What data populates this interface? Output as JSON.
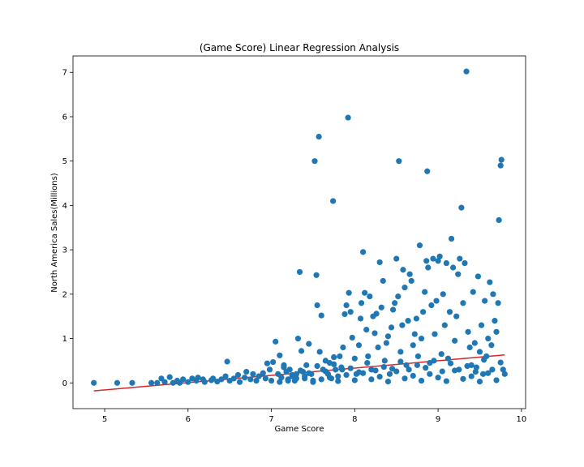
{
  "chart_data": {
    "type": "scatter",
    "title": "(Game Score) Linear Regression Analysis",
    "xlabel": "Game Score",
    "ylabel": "North America Sales(Millions)",
    "xlim": [
      4.62,
      10.05
    ],
    "ylim": [
      -0.58,
      7.37
    ],
    "xticks": [
      5,
      6,
      7,
      8,
      9,
      10
    ],
    "yticks": [
      0,
      1,
      2,
      3,
      4,
      5,
      6,
      7
    ],
    "grid": false,
    "legend": "none",
    "colors": {
      "points": "#1f77b4",
      "regression_line": "#d62728"
    },
    "regression_line": {
      "x": [
        4.87,
        9.8
      ],
      "y": [
        -0.18,
        0.63
      ]
    },
    "series": [
      {
        "points": [
          [
            4.87,
            0.0
          ],
          [
            5.15,
            0.0
          ],
          [
            5.33,
            0.0
          ],
          [
            5.56,
            0.0
          ],
          [
            5.63,
            0.0
          ],
          [
            5.68,
            0.1
          ],
          [
            5.72,
            0.02
          ],
          [
            5.78,
            0.13
          ],
          [
            5.82,
            0.0
          ],
          [
            5.87,
            0.05
          ],
          [
            5.9,
            0.0
          ],
          [
            5.94,
            0.08
          ],
          [
            6.0,
            0.02
          ],
          [
            6.05,
            0.1
          ],
          [
            6.1,
            0.05
          ],
          [
            6.12,
            0.12
          ],
          [
            6.18,
            0.08
          ],
          [
            6.2,
            0.02
          ],
          [
            6.28,
            0.06
          ],
          [
            6.3,
            0.1
          ],
          [
            6.35,
            0.03
          ],
          [
            6.4,
            0.08
          ],
          [
            6.45,
            0.15
          ],
          [
            6.47,
            0.48
          ],
          [
            6.5,
            0.05
          ],
          [
            6.55,
            0.1
          ],
          [
            6.6,
            0.18
          ],
          [
            6.62,
            0.02
          ],
          [
            6.68,
            0.12
          ],
          [
            6.7,
            0.25
          ],
          [
            6.75,
            0.08
          ],
          [
            6.78,
            0.2
          ],
          [
            6.82,
            0.05
          ],
          [
            6.85,
            0.15
          ],
          [
            6.9,
            0.22
          ],
          [
            6.93,
            0.1
          ],
          [
            6.95,
            0.44
          ],
          [
            6.98,
            0.3
          ],
          [
            7.0,
            0.05
          ],
          [
            7.02,
            0.47
          ],
          [
            7.05,
            0.93
          ],
          [
            7.08,
            0.2
          ],
          [
            7.1,
            0.62
          ],
          [
            7.12,
            0.12
          ],
          [
            7.15,
            0.4
          ],
          [
            7.18,
            0.25
          ],
          [
            7.2,
            0.08
          ],
          [
            7.22,
            0.3
          ],
          [
            7.25,
            0.15
          ],
          [
            7.28,
            0.05
          ],
          [
            7.3,
            0.2
          ],
          [
            7.32,
            1.0
          ],
          [
            7.34,
            2.5
          ],
          [
            7.36,
            0.72
          ],
          [
            7.38,
            0.25
          ],
          [
            7.4,
            0.1
          ],
          [
            7.42,
            0.4
          ],
          [
            7.45,
            0.88
          ],
          [
            7.48,
            0.2
          ],
          [
            7.5,
            0.05
          ],
          [
            7.52,
            5.0
          ],
          [
            7.54,
            2.43
          ],
          [
            7.55,
            1.75
          ],
          [
            7.57,
            5.55
          ],
          [
            7.58,
            0.7
          ],
          [
            7.6,
            1.52
          ],
          [
            7.62,
            0.3
          ],
          [
            7.65,
            0.5
          ],
          [
            7.68,
            0.2
          ],
          [
            7.7,
            0.45
          ],
          [
            7.72,
            0.1
          ],
          [
            7.74,
            4.1
          ],
          [
            7.75,
            0.58
          ],
          [
            7.77,
            0.3
          ],
          [
            7.8,
            0.15
          ],
          [
            7.82,
            0.6
          ],
          [
            7.84,
            0.35
          ],
          [
            7.86,
            0.8
          ],
          [
            7.88,
            1.55
          ],
          [
            7.9,
            1.75
          ],
          [
            7.92,
            5.98
          ],
          [
            7.93,
            2.03
          ],
          [
            7.95,
            1.6
          ],
          [
            7.97,
            1.02
          ],
          [
            8.0,
            0.55
          ],
          [
            8.02,
            0.2
          ],
          [
            8.05,
            0.85
          ],
          [
            8.07,
            1.45
          ],
          [
            8.08,
            1.8
          ],
          [
            8.1,
            2.95
          ],
          [
            8.12,
            2.03
          ],
          [
            8.14,
            1.2
          ],
          [
            8.16,
            0.6
          ],
          [
            8.18,
            1.95
          ],
          [
            8.2,
            0.3
          ],
          [
            8.22,
            1.5
          ],
          [
            8.24,
            1.12
          ],
          [
            8.26,
            1.56
          ],
          [
            8.28,
            0.8
          ],
          [
            8.3,
            2.72
          ],
          [
            8.32,
            1.7
          ],
          [
            8.34,
            2.3
          ],
          [
            8.36,
            0.5
          ],
          [
            8.38,
            0.9
          ],
          [
            8.4,
            1.05
          ],
          [
            8.42,
            0.2
          ],
          [
            8.44,
            1.25
          ],
          [
            8.46,
            1.65
          ],
          [
            8.48,
            1.8
          ],
          [
            8.5,
            2.8
          ],
          [
            8.52,
            1.95
          ],
          [
            8.53,
            5.0
          ],
          [
            8.55,
            0.7
          ],
          [
            8.57,
            1.3
          ],
          [
            8.58,
            2.55
          ],
          [
            8.6,
            2.15
          ],
          [
            8.62,
            0.4
          ],
          [
            8.64,
            1.4
          ],
          [
            8.66,
            2.45
          ],
          [
            8.68,
            2.3
          ],
          [
            8.7,
            0.85
          ],
          [
            8.72,
            1.1
          ],
          [
            8.74,
            1.45
          ],
          [
            8.76,
            0.6
          ],
          [
            8.78,
            3.1
          ],
          [
            8.8,
            1.0
          ],
          [
            8.82,
            1.6
          ],
          [
            8.84,
            2.05
          ],
          [
            8.86,
            2.75
          ],
          [
            8.87,
            4.77
          ],
          [
            8.88,
            2.6
          ],
          [
            8.9,
            0.45
          ],
          [
            8.92,
            1.75
          ],
          [
            8.94,
            2.8
          ],
          [
            8.96,
            1.1
          ],
          [
            8.98,
            1.85
          ],
          [
            9.0,
            2.75
          ],
          [
            9.02,
            2.85
          ],
          [
            9.04,
            0.65
          ],
          [
            9.06,
            2.0
          ],
          [
            9.08,
            1.3
          ],
          [
            9.1,
            2.7
          ],
          [
            9.12,
            0.55
          ],
          [
            9.14,
            1.6
          ],
          [
            9.16,
            3.25
          ],
          [
            9.18,
            2.6
          ],
          [
            9.2,
            0.95
          ],
          [
            9.22,
            1.5
          ],
          [
            9.24,
            2.45
          ],
          [
            9.26,
            2.8
          ],
          [
            9.28,
            3.95
          ],
          [
            9.3,
            1.8
          ],
          [
            9.32,
            2.7
          ],
          [
            9.34,
            7.02
          ],
          [
            9.36,
            1.15
          ],
          [
            9.38,
            0.8
          ],
          [
            9.4,
            0.4
          ],
          [
            9.42,
            2.05
          ],
          [
            9.44,
            0.9
          ],
          [
            9.46,
            0.35
          ],
          [
            9.48,
            2.4
          ],
          [
            9.5,
            0.7
          ],
          [
            9.52,
            1.3
          ],
          [
            9.54,
            0.2
          ],
          [
            9.56,
            1.85
          ],
          [
            9.58,
            0.6
          ],
          [
            9.6,
            1.0
          ],
          [
            9.62,
            2.27
          ],
          [
            9.64,
            0.85
          ],
          [
            9.66,
            2.0
          ],
          [
            9.68,
            1.4
          ],
          [
            9.7,
            1.15
          ],
          [
            9.72,
            1.8
          ],
          [
            9.73,
            3.67
          ],
          [
            9.75,
            4.9
          ],
          [
            9.76,
            5.03
          ],
          [
            9.78,
            0.3
          ],
          [
            9.8,
            0.2
          ],
          [
            7.1,
            0.02
          ],
          [
            7.2,
            0.05
          ],
          [
            7.3,
            0.1
          ],
          [
            7.4,
            0.15
          ],
          [
            7.5,
            0.02
          ],
          [
            7.6,
            0.08
          ],
          [
            7.7,
            0.12
          ],
          [
            7.8,
            0.04
          ],
          [
            7.9,
            0.18
          ],
          [
            8.0,
            0.06
          ],
          [
            8.1,
            0.22
          ],
          [
            8.2,
            0.08
          ],
          [
            8.3,
            0.14
          ],
          [
            8.4,
            0.03
          ],
          [
            8.5,
            0.26
          ],
          [
            8.6,
            0.1
          ],
          [
            8.7,
            0.16
          ],
          [
            8.8,
            0.05
          ],
          [
            8.9,
            0.2
          ],
          [
            9.0,
            0.12
          ],
          [
            9.1,
            0.04
          ],
          [
            9.2,
            0.28
          ],
          [
            9.3,
            0.09
          ],
          [
            9.4,
            0.15
          ],
          [
            9.5,
            0.03
          ],
          [
            9.6,
            0.22
          ],
          [
            9.7,
            0.06
          ],
          [
            7.15,
            0.35
          ],
          [
            7.35,
            0.28
          ],
          [
            7.55,
            0.38
          ],
          [
            7.75,
            0.42
          ],
          [
            7.95,
            0.33
          ],
          [
            8.15,
            0.45
          ],
          [
            8.35,
            0.36
          ],
          [
            8.55,
            0.48
          ],
          [
            8.75,
            0.4
          ],
          [
            8.95,
            0.5
          ],
          [
            9.15,
            0.44
          ],
          [
            9.35,
            0.38
          ],
          [
            9.55,
            0.52
          ],
          [
            9.75,
            0.46
          ],
          [
            7.25,
            0.18
          ],
          [
            7.45,
            0.22
          ],
          [
            7.65,
            0.26
          ],
          [
            7.85,
            0.3
          ],
          [
            8.05,
            0.24
          ],
          [
            8.25,
            0.28
          ],
          [
            8.45,
            0.32
          ],
          [
            8.65,
            0.3
          ],
          [
            8.85,
            0.34
          ],
          [
            9.05,
            0.26
          ],
          [
            9.25,
            0.3
          ],
          [
            9.45,
            0.25
          ],
          [
            9.65,
            0.3
          ]
        ]
      }
    ]
  }
}
